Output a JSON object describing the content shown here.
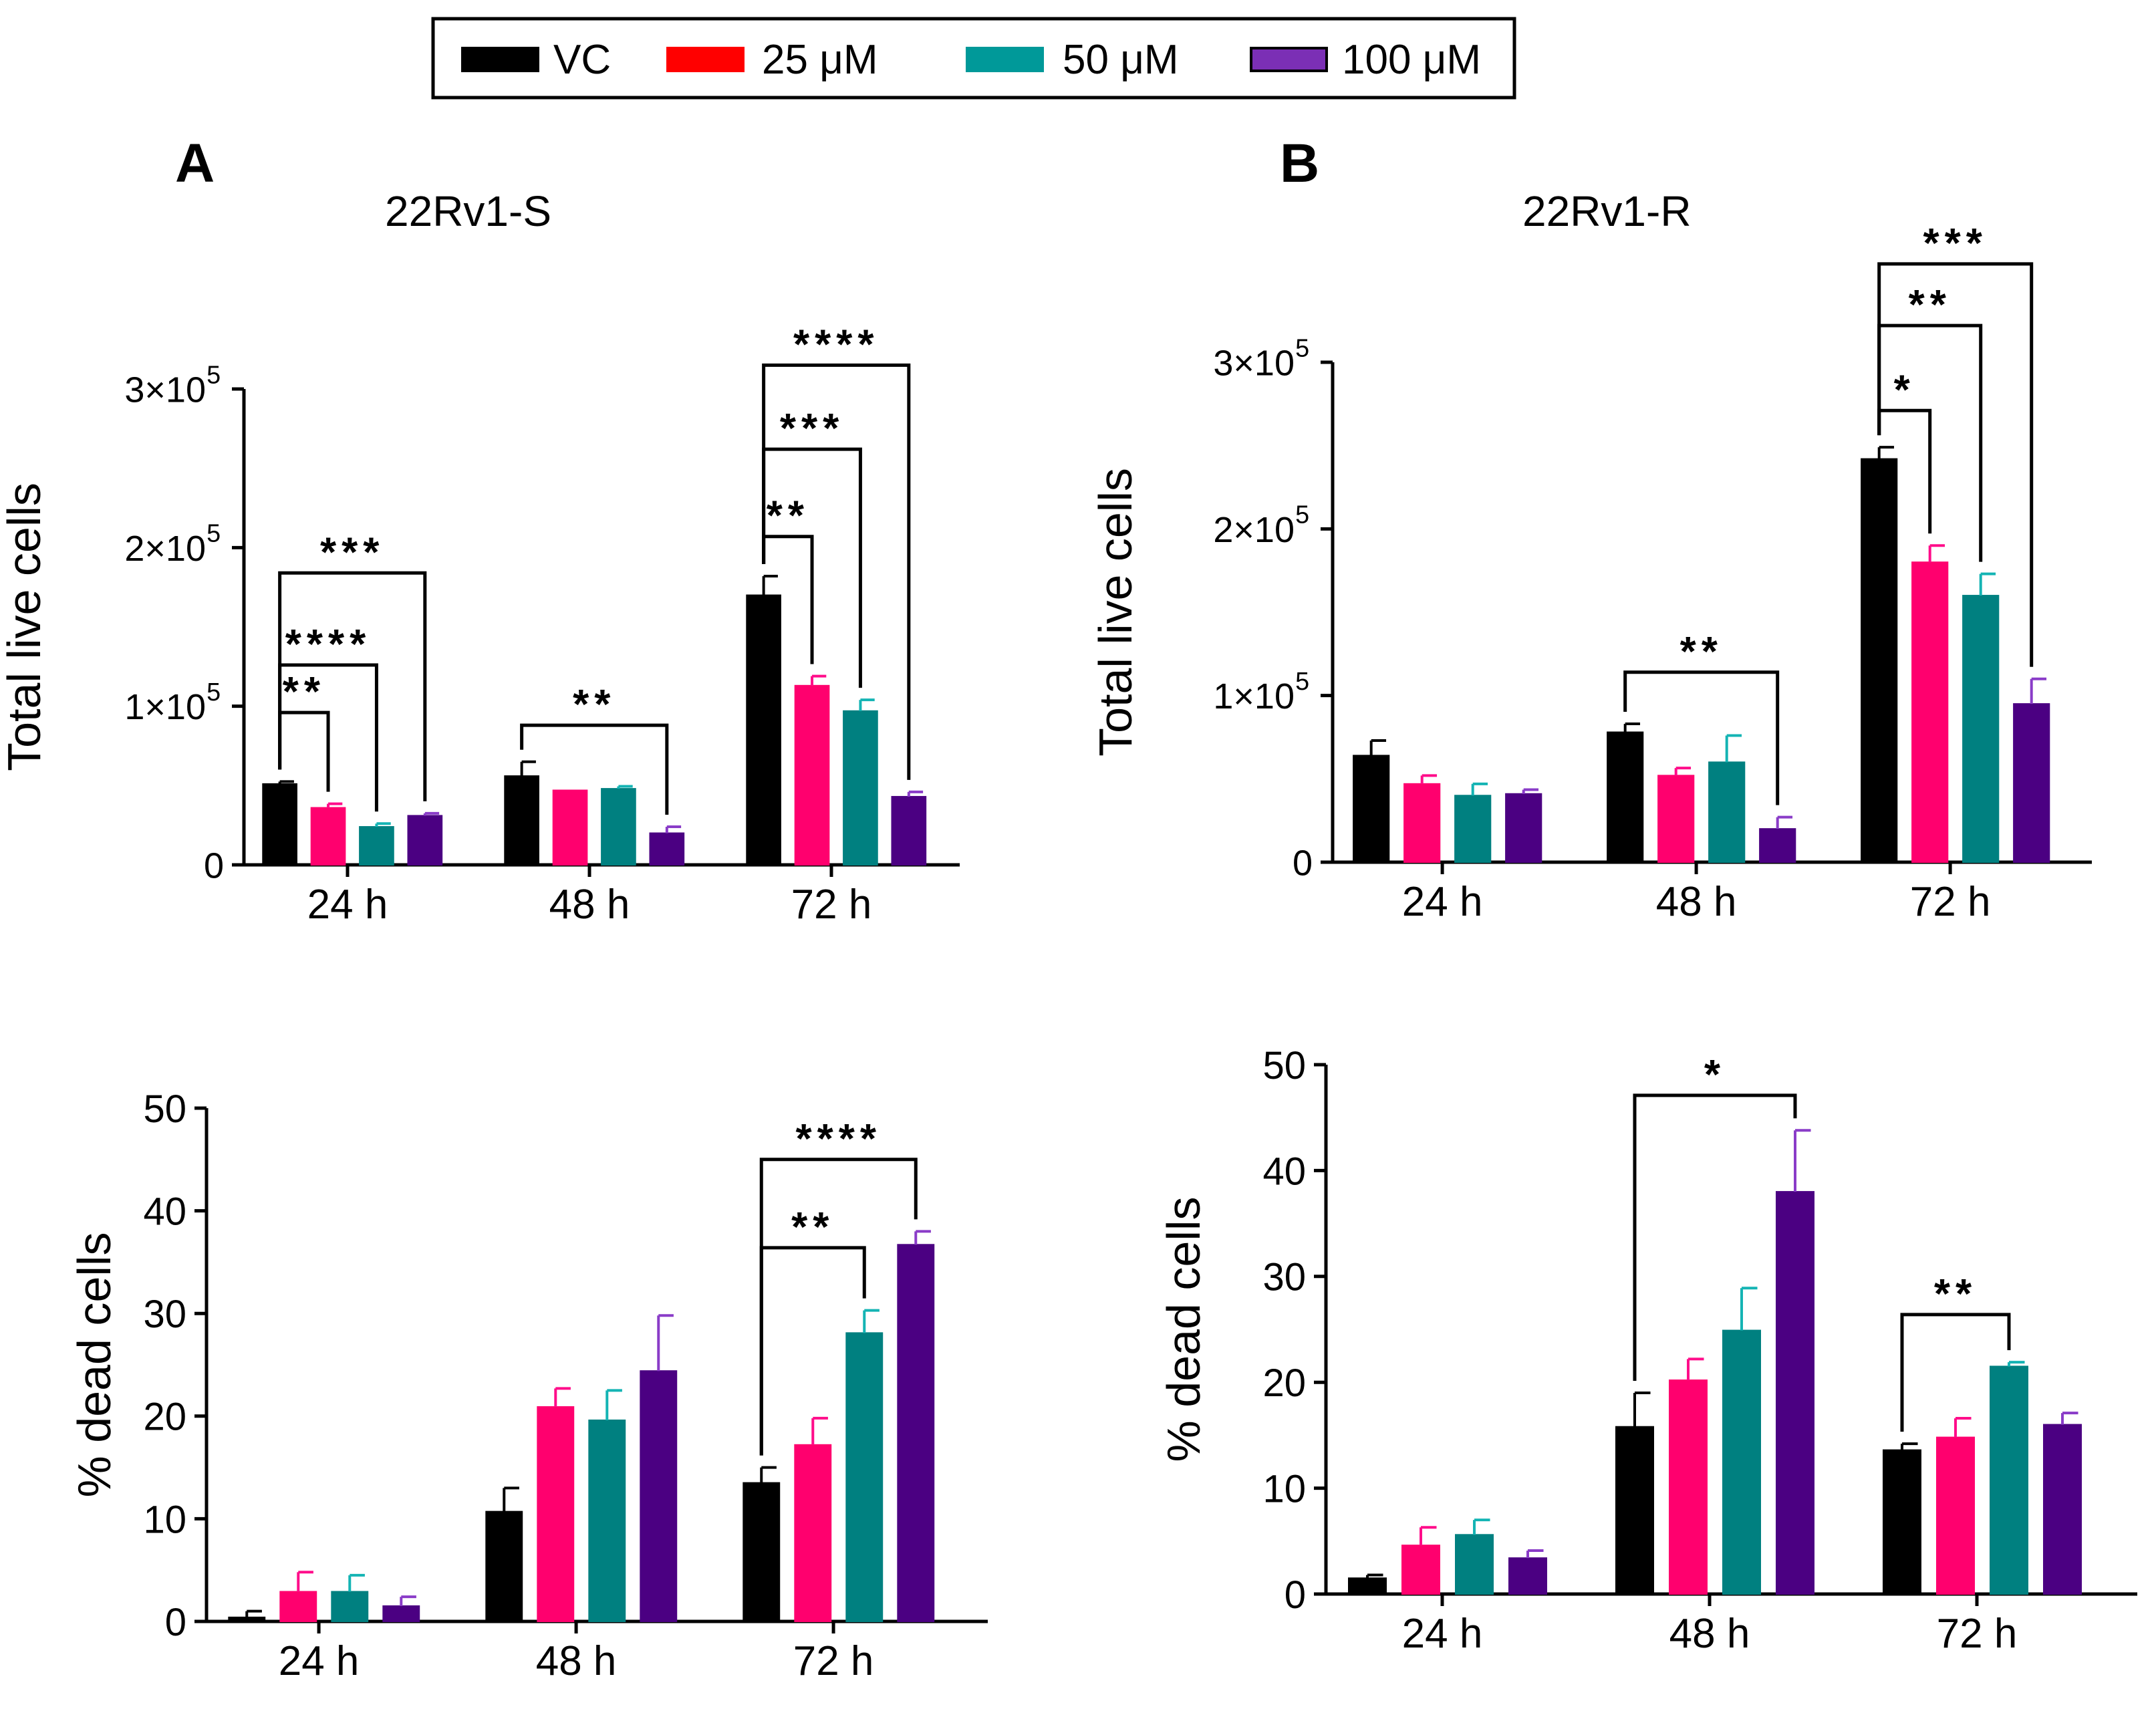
{
  "legend": {
    "items": [
      {
        "label": "VC",
        "color": "#000000"
      },
      {
        "label": "25 μM",
        "color": "#ff0000"
      },
      {
        "label": "50 μM",
        "color": "#009999"
      },
      {
        "label": "100 μM",
        "color": "#7b2fb5"
      }
    ]
  },
  "panels": [
    {
      "letter": "A",
      "title": "22Rv1-S"
    },
    {
      "letter": "B",
      "title": "22Rv1-R"
    }
  ],
  "series_colors": {
    "bar": [
      "#000000",
      "#ff006e",
      "#008080",
      "#4b0082"
    ],
    "err": [
      "#000000",
      "#ff0d8a",
      "#14b4b4",
      "#8a3cc8"
    ]
  },
  "chart_data": [
    {
      "id": "A-top",
      "type": "bar",
      "panel": "A",
      "title": "22Rv1-S",
      "categories": [
        "24 h",
        "48 h",
        "72 h"
      ],
      "series": [
        {
          "name": "VC",
          "values": [
            51000,
            56000,
            170000
          ],
          "errors": [
            1500,
            9000,
            12000
          ]
        },
        {
          "name": "25 μM",
          "values": [
            36000,
            47000,
            113000
          ],
          "errors": [
            2500,
            0,
            6000
          ]
        },
        {
          "name": "50 μM",
          "values": [
            24000,
            48000,
            97000
          ],
          "errors": [
            2000,
            1500,
            7000
          ]
        },
        {
          "name": "100 μM",
          "values": [
            31000,
            20000,
            43000
          ],
          "errors": [
            1500,
            4000,
            3000
          ]
        }
      ],
      "ylabel": "Total live cells",
      "xlabel": "",
      "ylim": [
        0,
        300000
      ],
      "yticks": [
        {
          "value": 0,
          "mantissa": "0",
          "exp": ""
        },
        {
          "value": 100000,
          "mantissa": "1×10",
          "exp": "5"
        },
        {
          "value": 200000,
          "mantissa": "2×10",
          "exp": "5"
        },
        {
          "value": 300000,
          "mantissa": "3×10",
          "exp": "5"
        }
      ],
      "significance": [
        {
          "label": "**",
          "group": 0,
          "from": 0,
          "to": 1,
          "level": 96000
        },
        {
          "label": "****",
          "group": 0,
          "from": 0,
          "to": 2,
          "level": 126000
        },
        {
          "label": "***",
          "group": 0,
          "from": 0,
          "to": 3,
          "level": 184000
        },
        {
          "label": "**",
          "group": 1,
          "from": 0,
          "to": 3,
          "level": 88000
        },
        {
          "label": "**",
          "group": 2,
          "from": 0,
          "to": 1,
          "level": 207000
        },
        {
          "label": "***",
          "group": 2,
          "from": 0,
          "to": 2,
          "level": 262000
        },
        {
          "label": "****",
          "group": 2,
          "from": 0,
          "to": 3,
          "level": 315000
        }
      ]
    },
    {
      "id": "B-top",
      "type": "bar",
      "panel": "B",
      "title": "22Rv1-R",
      "categories": [
        "24 h",
        "48 h",
        "72 h"
      ],
      "series": [
        {
          "name": "VC",
          "values": [
            64000,
            78000,
            242000
          ],
          "errors": [
            9000,
            5000,
            7000
          ]
        },
        {
          "name": "25 μM",
          "values": [
            47000,
            52000,
            180000
          ],
          "errors": [
            5000,
            4500,
            10000
          ]
        },
        {
          "name": "50 μM",
          "values": [
            40000,
            60000,
            160000
          ],
          "errors": [
            7000,
            16000,
            13000
          ]
        },
        {
          "name": "100 μM",
          "values": [
            41000,
            20000,
            95000
          ],
          "errors": [
            2500,
            7000,
            15000
          ]
        }
      ],
      "ylabel": "Total live cells",
      "xlabel": "",
      "ylim": [
        0,
        300000
      ],
      "yticks": [
        {
          "value": 0,
          "mantissa": "0",
          "exp": ""
        },
        {
          "value": 100000,
          "mantissa": "1×10",
          "exp": "5"
        },
        {
          "value": 200000,
          "mantissa": "2×10",
          "exp": "5"
        },
        {
          "value": 300000,
          "mantissa": "3×10",
          "exp": "5"
        }
      ],
      "significance": [
        {
          "label": "**",
          "group": 1,
          "from": 0,
          "to": 3,
          "level": 114000
        },
        {
          "label": "*",
          "group": 2,
          "from": 0,
          "to": 1,
          "level": 271000
        },
        {
          "label": "**",
          "group": 2,
          "from": 0,
          "to": 2,
          "level": 322000
        },
        {
          "label": "***",
          "group": 2,
          "from": 0,
          "to": 3,
          "level": 359000
        }
      ]
    },
    {
      "id": "A-bottom",
      "type": "bar",
      "panel": "A",
      "categories": [
        "24 h",
        "48 h",
        "72 h"
      ],
      "series": [
        {
          "name": "VC",
          "values": [
            0.4,
            10.7,
            13.5
          ],
          "errors": [
            0.6,
            2.3,
            1.5
          ]
        },
        {
          "name": "25 μM",
          "values": [
            2.9,
            20.9,
            17.2
          ],
          "errors": [
            1.9,
            1.8,
            2.6
          ]
        },
        {
          "name": "50 μM",
          "values": [
            2.9,
            19.6,
            28.1
          ],
          "errors": [
            1.6,
            2.9,
            2.2
          ]
        },
        {
          "name": "100 μM",
          "values": [
            1.5,
            24.4,
            36.7
          ],
          "errors": [
            0.9,
            5.4,
            1.3
          ]
        }
      ],
      "ylabel": "% dead cells",
      "xlabel": "",
      "ylim": [
        0,
        50
      ],
      "yticks": [
        {
          "value": 0,
          "mantissa": "0",
          "exp": ""
        },
        {
          "value": 10,
          "mantissa": "10",
          "exp": ""
        },
        {
          "value": 20,
          "mantissa": "20",
          "exp": ""
        },
        {
          "value": 30,
          "mantissa": "30",
          "exp": ""
        },
        {
          "value": 40,
          "mantissa": "40",
          "exp": ""
        },
        {
          "value": 50,
          "mantissa": "50",
          "exp": ""
        }
      ],
      "significance": [
        {
          "label": "**",
          "group": 2,
          "from": 0,
          "to": 2,
          "level": 36.4
        },
        {
          "label": "****",
          "group": 2,
          "from": 0,
          "to": 3,
          "level": 45.0
        }
      ]
    },
    {
      "id": "B-bottom",
      "type": "bar",
      "panel": "B",
      "categories": [
        "24 h",
        "48 h",
        "72 h"
      ],
      "series": [
        {
          "name": "VC",
          "values": [
            1.5,
            15.8,
            13.6
          ],
          "errors": [
            0.3,
            3.2,
            0.6
          ]
        },
        {
          "name": "25 μM",
          "values": [
            4.6,
            20.2,
            14.8
          ],
          "errors": [
            1.7,
            2.0,
            1.8
          ]
        },
        {
          "name": "50 μM",
          "values": [
            5.6,
            24.9,
            21.5
          ],
          "errors": [
            1.4,
            4.0,
            0.4
          ]
        },
        {
          "name": "100 μM",
          "values": [
            3.4,
            38.0,
            16.0
          ],
          "errors": [
            0.7,
            5.8,
            1.1
          ]
        }
      ],
      "ylabel": "% dead cells",
      "xlabel": "",
      "ylim": [
        0,
        50
      ],
      "yticks": [
        {
          "value": 0,
          "mantissa": "0",
          "exp": ""
        },
        {
          "value": 10,
          "mantissa": "10",
          "exp": ""
        },
        {
          "value": 20,
          "mantissa": "20",
          "exp": ""
        },
        {
          "value": 30,
          "mantissa": "30",
          "exp": ""
        },
        {
          "value": 40,
          "mantissa": "40",
          "exp": ""
        },
        {
          "value": 50,
          "mantissa": "50",
          "exp": ""
        }
      ],
      "significance": [
        {
          "label": "*",
          "group": 1,
          "from": 0,
          "to": 3,
          "level": 47.1
        },
        {
          "label": "**",
          "group": 2,
          "from": 0,
          "to": 2,
          "level": 26.4
        }
      ]
    }
  ]
}
